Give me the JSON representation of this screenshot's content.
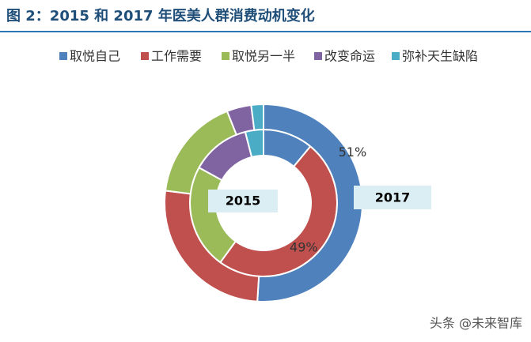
{
  "chart_data": {
    "type": "donut",
    "title": "图 2：2015 和 2017 年医美人群消费动机变化",
    "categories": [
      "取悦自己",
      "工作需要",
      "取悦另一半",
      "改变命运",
      "弥补天生缺陷"
    ],
    "colors": [
      "#4f81bd",
      "#c0504d",
      "#9bbb59",
      "#8064a2",
      "#4bacc6"
    ],
    "rings": [
      {
        "name": "2015",
        "values": [
          11,
          49,
          23,
          13,
          4
        ],
        "value_labels": [
          null,
          "49%",
          null,
          null,
          null
        ]
      },
      {
        "name": "2017",
        "values": [
          51,
          26,
          17,
          4,
          2
        ],
        "value_labels": [
          "51%",
          null,
          null,
          null,
          null
        ]
      }
    ],
    "watermark": "头条 @未来智库"
  }
}
